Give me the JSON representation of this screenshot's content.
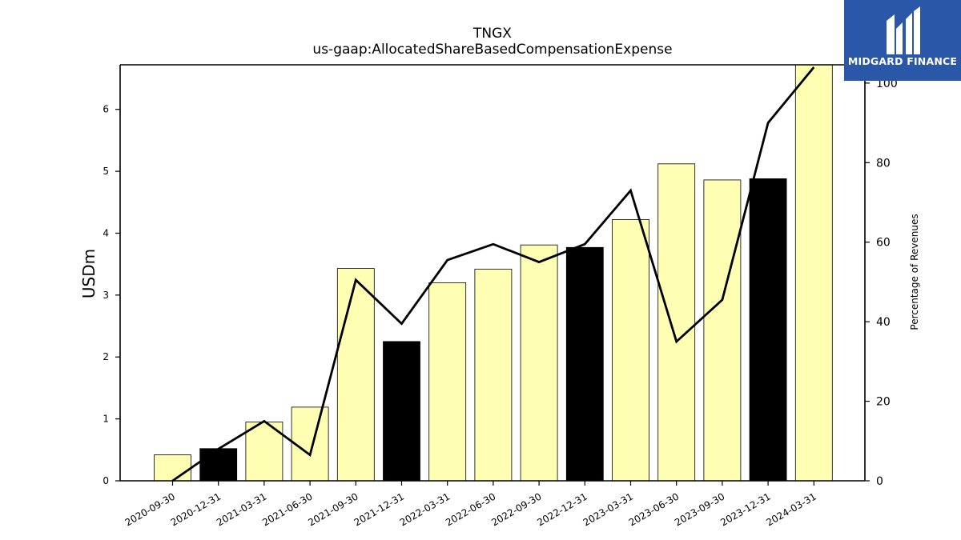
{
  "chart_data": {
    "type": "bar",
    "title": "TNGX",
    "subtitle": "us-gaap:AllocatedShareBasedCompensationExpense",
    "ylabel": "USDm",
    "ylabel_right": "Percentage of Revenues",
    "categories": [
      "2020-09-30",
      "2020-12-31",
      "2021-03-31",
      "2021-06-30",
      "2021-09-30",
      "2021-12-31",
      "2022-03-31",
      "2022-06-30",
      "2022-09-30",
      "2022-12-31",
      "2023-03-31",
      "2023-06-30",
      "2023-09-30",
      "2023-12-31",
      "2024-03-31"
    ],
    "series": [
      {
        "type": "bar",
        "axis": "left",
        "values": [
          0.42,
          0.52,
          0.95,
          1.19,
          3.43,
          2.25,
          3.2,
          3.42,
          3.81,
          3.77,
          4.22,
          5.12,
          4.86,
          4.88,
          6.75
        ],
        "colors": [
          "#ffffb3",
          "#000000",
          "#ffffb3",
          "#ffffb3",
          "#ffffb3",
          "#000000",
          "#ffffb3",
          "#ffffb3",
          "#ffffb3",
          "#000000",
          "#ffffb3",
          "#ffffb3",
          "#ffffb3",
          "#000000",
          "#ffffb3"
        ]
      },
      {
        "type": "line",
        "axis": "right",
        "values": [
          0,
          8,
          15,
          6.5,
          50.5,
          39.5,
          55.5,
          59.5,
          55,
          59.5,
          73,
          35,
          45.5,
          90,
          104
        ]
      }
    ],
    "ylim": [
      0,
      6.72
    ],
    "yticks": [
      0,
      1,
      2,
      3,
      4,
      5,
      6
    ],
    "ylim_right": [
      0,
      104.6
    ],
    "yticks_right": [
      0,
      20,
      40,
      60,
      80,
      100
    ],
    "grid": false,
    "legend": "none"
  },
  "logo": {
    "brand": "MIDGARD FINANCE"
  }
}
